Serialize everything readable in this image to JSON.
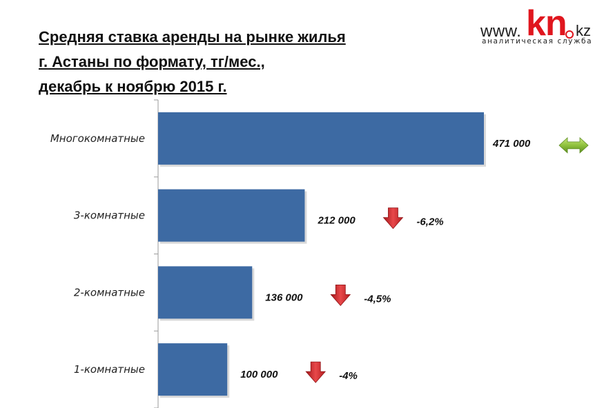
{
  "title": {
    "line1": "Средняя ставка аренды на рынке жилья",
    "line2": "г. Астаны по формату, тг/мес.,",
    "line3": "декабрь к ноябрю 2015 г."
  },
  "logo": {
    "prefix": "www.",
    "brand": "kn",
    "suffix": "kz",
    "tagline": "аналитическая служба",
    "brand_color": "#e0161e"
  },
  "chart_data": {
    "type": "bar",
    "orientation": "horizontal",
    "categories": [
      "Многокомнатные",
      "3-комнатные",
      "2-комнатные",
      "1-комнатные"
    ],
    "values": [
      471000,
      212000,
      136000,
      100000
    ],
    "value_labels": [
      "471 000",
      "212 000",
      "136 000",
      "100 000"
    ],
    "changes": [
      "",
      "-6,2%",
      "-4,5%",
      "-4%"
    ],
    "trend_icons": [
      "double-arrow",
      "down-arrow",
      "down-arrow",
      "down-arrow"
    ],
    "bar_color": "#3d6aa3",
    "grid": false,
    "xlim": [
      0,
      471000
    ]
  }
}
